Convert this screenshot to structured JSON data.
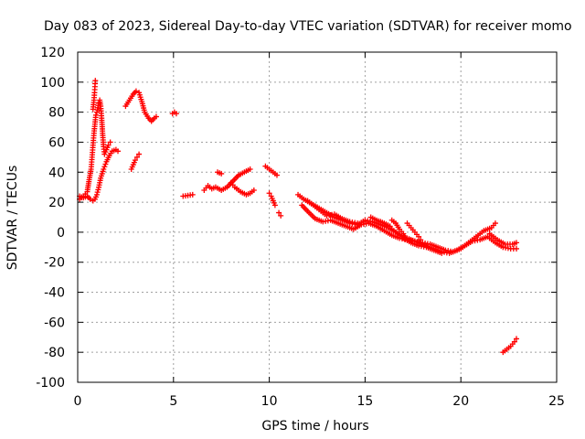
{
  "chart_data": {
    "type": "scatter",
    "title": "Day 083 of 2023, Sidereal Day-to-day VTEC variation (SDTVAR) for receiver momo",
    "xlabel": "GPS time / hours",
    "ylabel": "SDTVAR / TECUs",
    "xlim": [
      0,
      25
    ],
    "ylim": [
      -100,
      120
    ],
    "xticks": [
      0,
      5,
      10,
      15,
      20,
      25
    ],
    "yticks": [
      -100,
      -80,
      -60,
      -40,
      -20,
      0,
      20,
      40,
      60,
      80,
      100,
      120
    ],
    "grid": true,
    "marker": "+",
    "color": "#ff0000",
    "segments": [
      [
        [
          0.1,
          24
        ],
        [
          0.3,
          23
        ],
        [
          0.5,
          24
        ],
        [
          0.65,
          22
        ],
        [
          0.8,
          21
        ],
        [
          0.9,
          22
        ],
        [
          1.0,
          25
        ],
        [
          1.1,
          30
        ],
        [
          1.2,
          36
        ],
        [
          1.35,
          42
        ],
        [
          1.5,
          47
        ],
        [
          1.65,
          51
        ],
        [
          1.8,
          54
        ],
        [
          2.0,
          55
        ],
        [
          2.1,
          54
        ]
      ],
      [
        [
          0.1,
          22
        ],
        [
          0.3,
          24
        ],
        [
          0.5,
          27
        ],
        [
          0.6,
          35
        ],
        [
          0.7,
          42
        ],
        [
          0.75,
          50
        ],
        [
          0.8,
          58
        ],
        [
          0.85,
          66
        ],
        [
          0.9,
          72
        ],
        [
          0.95,
          78
        ],
        [
          1.0,
          80
        ],
        [
          1.05,
          83
        ],
        [
          1.1,
          86
        ],
        [
          1.15,
          88
        ],
        [
          1.2,
          84
        ],
        [
          1.25,
          76
        ],
        [
          1.3,
          66
        ],
        [
          1.35,
          57
        ],
        [
          1.4,
          52
        ],
        [
          1.5,
          55
        ],
        [
          1.6,
          58
        ],
        [
          1.7,
          60
        ]
      ],
      [
        [
          0.8,
          82
        ],
        [
          0.85,
          88
        ],
        [
          0.88,
          93
        ],
        [
          0.9,
          97
        ],
        [
          0.92,
          101
        ]
      ],
      [
        [
          2.5,
          84
        ],
        [
          2.7,
          88
        ],
        [
          2.9,
          92
        ],
        [
          3.05,
          94
        ],
        [
          3.2,
          93
        ],
        [
          3.35,
          87
        ],
        [
          3.5,
          80
        ],
        [
          3.7,
          76
        ],
        [
          3.85,
          74
        ],
        [
          4.0,
          76
        ],
        [
          4.1,
          77
        ]
      ],
      [
        [
          2.8,
          42
        ],
        [
          2.9,
          45
        ],
        [
          3.0,
          48
        ],
        [
          3.1,
          50
        ],
        [
          3.2,
          52
        ]
      ],
      [
        [
          4.95,
          79
        ],
        [
          5.05,
          80
        ],
        [
          5.15,
          79
        ]
      ],
      [
        [
          5.5,
          24
        ],
        [
          6.0,
          25
        ]
      ],
      [
        [
          6.6,
          28
        ],
        [
          6.8,
          31
        ],
        [
          7.0,
          29
        ],
        [
          7.2,
          30
        ],
        [
          7.5,
          28
        ],
        [
          7.8,
          30
        ],
        [
          8.1,
          34
        ],
        [
          8.4,
          38
        ],
        [
          8.7,
          40
        ],
        [
          9.0,
          42
        ]
      ],
      [
        [
          7.3,
          40
        ],
        [
          7.5,
          39
        ]
      ],
      [
        [
          8.0,
          33
        ],
        [
          8.2,
          30
        ],
        [
          8.5,
          27
        ],
        [
          8.8,
          25
        ],
        [
          9.0,
          26
        ],
        [
          9.2,
          28
        ]
      ],
      [
        [
          9.8,
          44
        ],
        [
          10.0,
          42
        ],
        [
          10.2,
          40
        ],
        [
          10.4,
          38
        ]
      ],
      [
        [
          10.0,
          26
        ],
        [
          10.1,
          24
        ],
        [
          10.2,
          21
        ],
        [
          10.3,
          18
        ]
      ],
      [
        [
          10.5,
          13
        ],
        [
          10.6,
          11
        ]
      ],
      [
        [
          11.5,
          25
        ],
        [
          11.8,
          22
        ],
        [
          12.2,
          19
        ],
        [
          12.6,
          16
        ],
        [
          13.0,
          13
        ],
        [
          13.4,
          10
        ],
        [
          13.8,
          8
        ],
        [
          14.2,
          6
        ],
        [
          14.6,
          5
        ],
        [
          15.0,
          8
        ],
        [
          15.4,
          7
        ],
        [
          15.8,
          5
        ],
        [
          16.2,
          3
        ],
        [
          16.6,
          0
        ],
        [
          17.0,
          -3
        ],
        [
          17.4,
          -5
        ],
        [
          17.8,
          -7
        ],
        [
          18.2,
          -9
        ],
        [
          18.6,
          -11
        ],
        [
          19.0,
          -13
        ],
        [
          19.4,
          -14
        ],
        [
          19.8,
          -12
        ],
        [
          20.2,
          -9
        ],
        [
          20.6,
          -6
        ],
        [
          21.0,
          -5
        ],
        [
          21.4,
          -3
        ],
        [
          21.8,
          -7
        ],
        [
          22.2,
          -10
        ],
        [
          22.6,
          -11
        ],
        [
          22.9,
          -11
        ]
      ],
      [
        [
          11.7,
          18
        ],
        [
          12.0,
          14
        ],
        [
          12.4,
          9
        ],
        [
          12.8,
          7
        ],
        [
          13.2,
          8
        ],
        [
          13.6,
          6
        ],
        [
          14.0,
          4
        ],
        [
          14.4,
          2
        ],
        [
          14.8,
          5
        ],
        [
          15.2,
          6
        ],
        [
          15.6,
          4
        ],
        [
          16.0,
          1
        ],
        [
          16.4,
          -2
        ],
        [
          16.8,
          -4
        ],
        [
          17.2,
          -5
        ],
        [
          17.6,
          -6
        ],
        [
          18.0,
          -7
        ],
        [
          18.4,
          -8
        ],
        [
          18.8,
          -10
        ],
        [
          19.2,
          -12
        ],
        [
          19.6,
          -13
        ],
        [
          20.0,
          -11
        ],
        [
          20.4,
          -7
        ],
        [
          20.8,
          -3
        ],
        [
          21.2,
          1
        ],
        [
          21.6,
          3
        ],
        [
          21.8,
          6
        ]
      ],
      [
        [
          12.0,
          21
        ],
        [
          12.3,
          18
        ],
        [
          12.6,
          15
        ],
        [
          13.0,
          11
        ],
        [
          13.4,
          12
        ],
        [
          13.8,
          9
        ],
        [
          14.2,
          7
        ],
        [
          14.6,
          6
        ]
      ],
      [
        [
          15.8,
          7
        ],
        [
          16.2,
          4
        ],
        [
          16.6,
          0
        ],
        [
          17.0,
          -4
        ],
        [
          17.4,
          -7
        ],
        [
          17.8,
          -9
        ],
        [
          18.2,
          -10
        ],
        [
          18.6,
          -12
        ],
        [
          19.0,
          -14
        ]
      ],
      [
        [
          15.3,
          10
        ],
        [
          15.6,
          8
        ],
        [
          16.0,
          6
        ],
        [
          16.3,
          4
        ]
      ],
      [
        [
          16.4,
          8
        ],
        [
          16.6,
          6
        ],
        [
          16.8,
          2
        ],
        [
          17.0,
          -1
        ],
        [
          17.1,
          -4
        ]
      ],
      [
        [
          17.2,
          6
        ],
        [
          17.4,
          3
        ],
        [
          17.6,
          0
        ],
        [
          17.8,
          -3
        ],
        [
          17.9,
          -5
        ]
      ],
      [
        [
          21.5,
          -1
        ],
        [
          21.9,
          -5
        ],
        [
          22.3,
          -8
        ],
        [
          22.7,
          -8
        ],
        [
          22.9,
          -7
        ]
      ],
      [
        [
          22.2,
          -80
        ],
        [
          22.4,
          -78
        ],
        [
          22.6,
          -76
        ],
        [
          22.8,
          -73
        ],
        [
          22.9,
          -71
        ]
      ]
    ]
  }
}
